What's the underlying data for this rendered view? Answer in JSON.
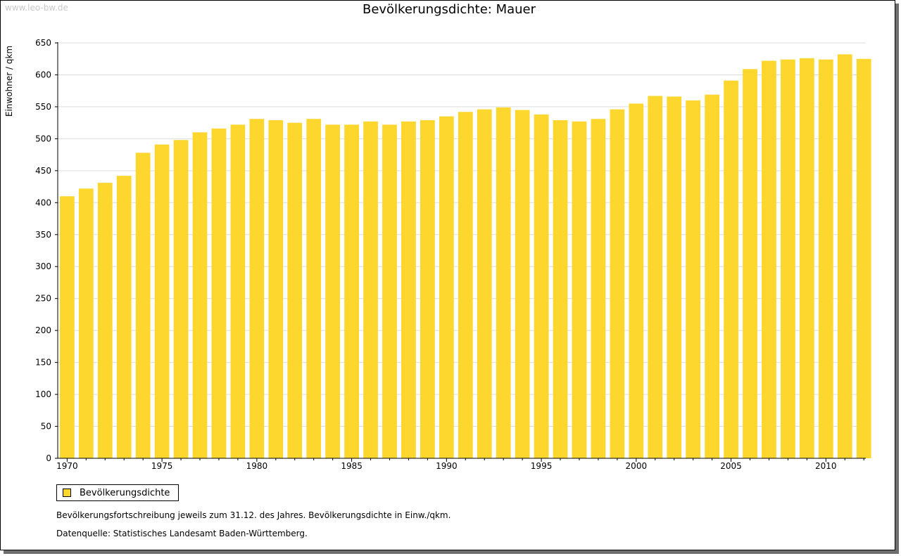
{
  "watermark": "www.leo-bw.de",
  "chart_data": {
    "type": "bar",
    "title": "Bevölkerungsdichte: Mauer",
    "xlabel": "",
    "ylabel": "Einwohner / qkm",
    "ylim": [
      0,
      650
    ],
    "yticks": [
      0,
      50,
      100,
      150,
      200,
      250,
      300,
      350,
      400,
      450,
      500,
      550,
      600,
      650
    ],
    "xticks": [
      "1970",
      "1975",
      "1980",
      "1985",
      "1990",
      "1995",
      "2000",
      "2005",
      "2010"
    ],
    "grid": true,
    "legend_position": "bottom-left",
    "categories": [
      1970,
      1971,
      1972,
      1973,
      1974,
      1975,
      1976,
      1977,
      1978,
      1979,
      1980,
      1981,
      1982,
      1983,
      1984,
      1985,
      1986,
      1987,
      1988,
      1989,
      1990,
      1991,
      1992,
      1993,
      1994,
      1995,
      1996,
      1997,
      1998,
      1999,
      2000,
      2001,
      2002,
      2003,
      2004,
      2005,
      2006,
      2007,
      2008,
      2009,
      2010,
      2011,
      2012
    ],
    "series": [
      {
        "name": "Bevölkerungsdichte",
        "color": "#fdd62e",
        "values": [
          410,
          422,
          431,
          442,
          478,
          491,
          498,
          510,
          516,
          522,
          531,
          529,
          525,
          531,
          522,
          522,
          527,
          522,
          527,
          529,
          535,
          542,
          546,
          549,
          545,
          538,
          529,
          527,
          531,
          546,
          555,
          567,
          566,
          560,
          569,
          591,
          609,
          622,
          624,
          626,
          624,
          632,
          625
        ]
      }
    ]
  },
  "notes": {
    "line1": "Bevölkerungsfortschreibung jeweils zum 31.12. des Jahres. Bevölkerungsdichte in Einw./qkm.",
    "line2": "Datenquelle: Statistisches Landesamt Baden-Württemberg."
  }
}
